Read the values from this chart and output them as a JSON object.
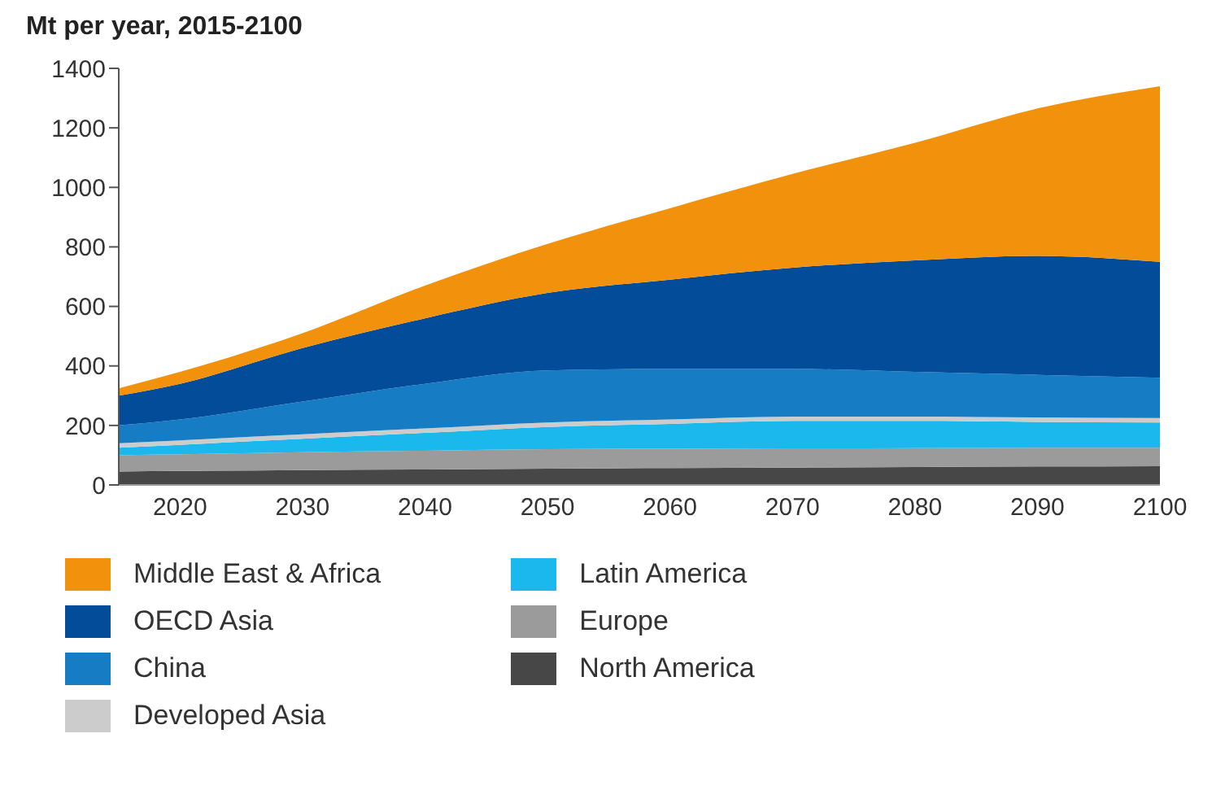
{
  "chart_data": {
    "type": "area",
    "title": "Mt per year, 2015-2100",
    "stacked": true,
    "x": [
      2015,
      2020,
      2030,
      2040,
      2050,
      2060,
      2070,
      2080,
      2090,
      2100
    ],
    "xlim": [
      2015,
      2100
    ],
    "xticks": [
      2020,
      2030,
      2040,
      2050,
      2060,
      2070,
      2080,
      2090,
      2100
    ],
    "ylim": [
      0,
      1400
    ],
    "yticks": [
      0,
      200,
      400,
      600,
      800,
      1000,
      1200,
      1400
    ],
    "grid": false,
    "legend": "bottom",
    "series": [
      {
        "name": "North America",
        "color": "#474747",
        "values": [
          45,
          47,
          50,
          52,
          55,
          57,
          58,
          60,
          62,
          63
        ]
      },
      {
        "name": "Europe",
        "color": "#9b9b9b",
        "values": [
          55,
          56,
          60,
          63,
          65,
          65,
          65,
          64,
          63,
          62
        ]
      },
      {
        "name": "Latin America",
        "color": "#1ab8ec",
        "values": [
          25,
          32,
          45,
          60,
          75,
          83,
          92,
          91,
          87,
          85
        ]
      },
      {
        "name": "Developed Asia",
        "color": "#cccccc",
        "values": [
          15,
          15,
          15,
          15,
          15,
          15,
          15,
          15,
          15,
          15
        ]
      },
      {
        "name": "China",
        "color": "#167cc3",
        "values": [
          60,
          70,
          110,
          150,
          175,
          170,
          160,
          150,
          143,
          135
        ]
      },
      {
        "name": "OECD Asia",
        "color": "#034c99",
        "values": [
          100,
          120,
          180,
          220,
          260,
          300,
          340,
          375,
          400,
          390
        ]
      },
      {
        "name": "Middle East & Africa",
        "color": "#f2910c",
        "values": [
          25,
          40,
          50,
          110,
          165,
          240,
          315,
          395,
          495,
          590
        ]
      }
    ]
  }
}
